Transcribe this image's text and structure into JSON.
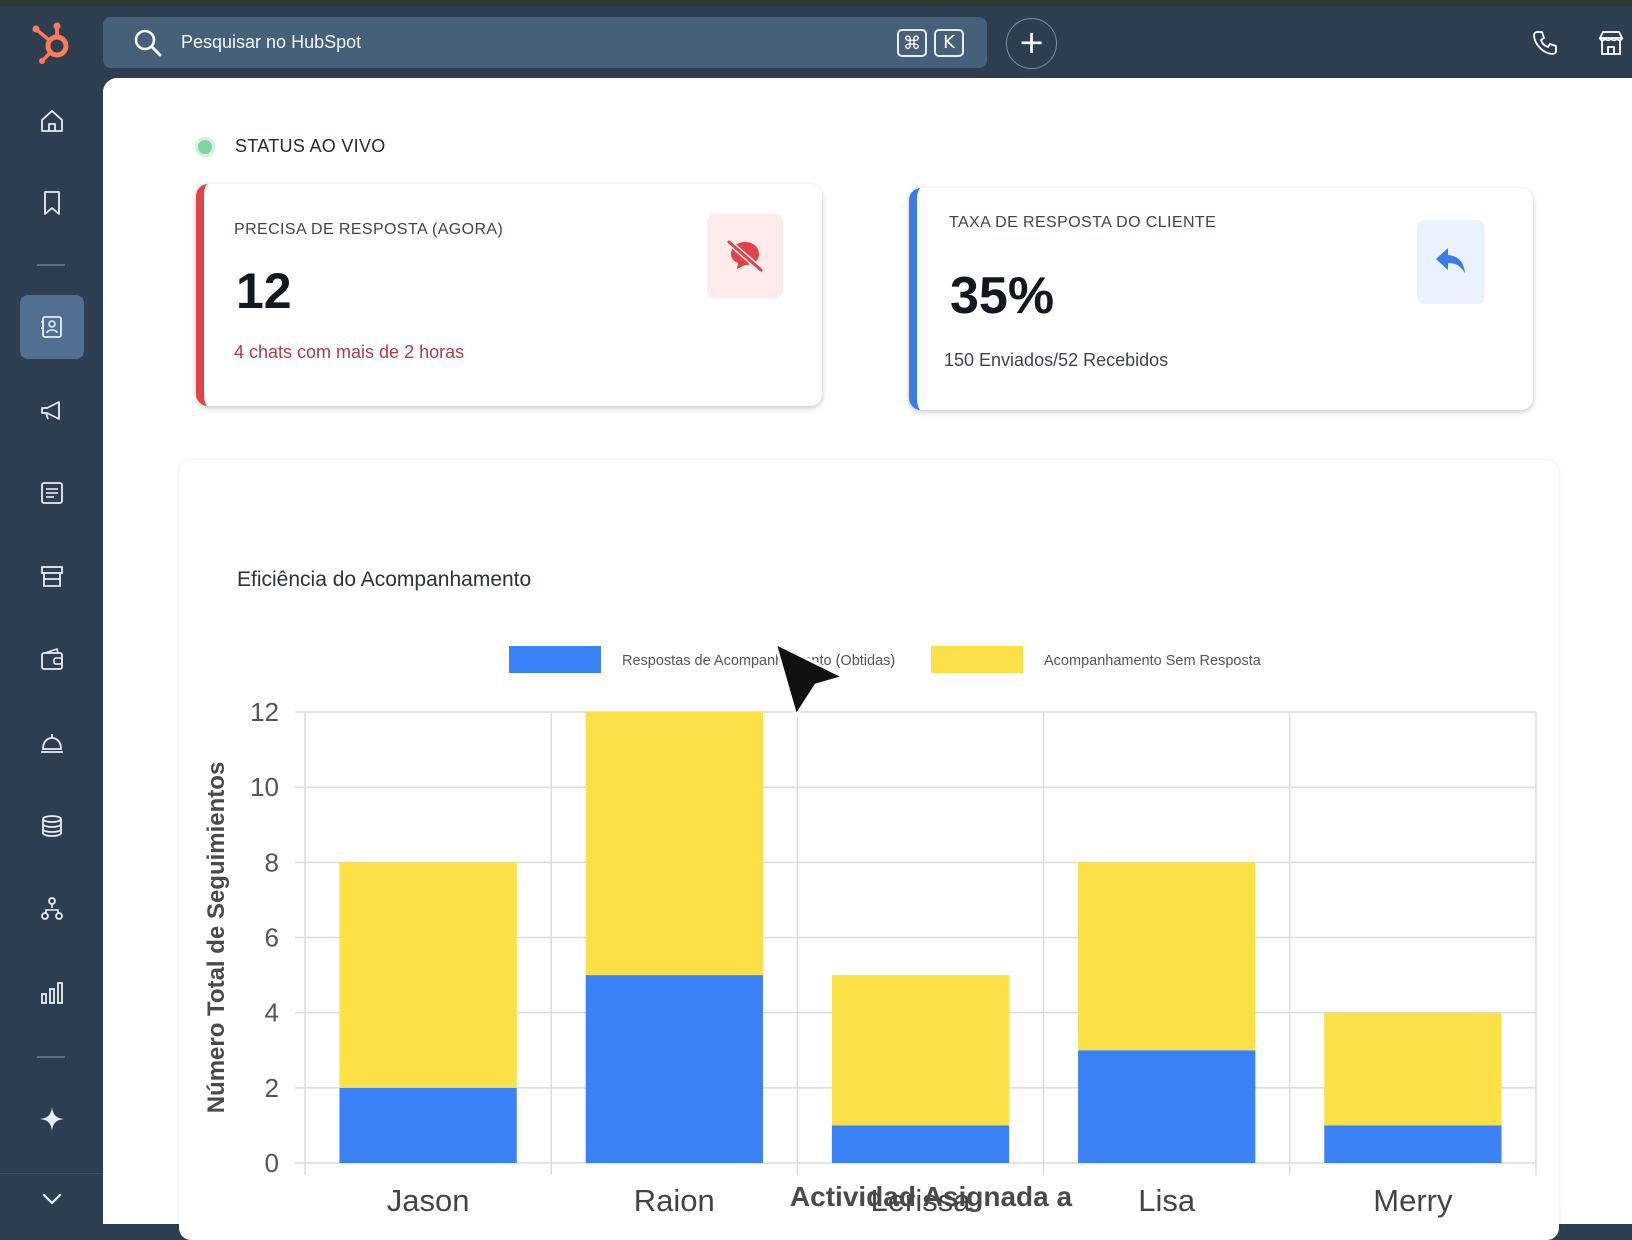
{
  "search": {
    "placeholder": "Pesquisar no HubSpot",
    "shortcut_cmd": "⌘",
    "shortcut_k": "K"
  },
  "status": {
    "label": "STATUS AO VIVO"
  },
  "cards": [
    {
      "label": "PRECISA DE RESPOSTA (AGORA)",
      "value": "12",
      "sub": "4 chats com mais de 2 horas",
      "icon": "chat-off-icon",
      "color": "#e2434b"
    },
    {
      "label": "TAXA DE RESPOSTA DO CLIENTE",
      "value": "35%",
      "sub": "150 Enviados/52 Recebidos",
      "icon": "reply-icon",
      "color": "#3b7be6"
    }
  ],
  "sidebar": {
    "items": [
      "home-icon",
      "bookmark-icon",
      "contacts-icon",
      "megaphone-icon",
      "content-icon",
      "commerce-icon",
      "wallet-icon",
      "service-bell-icon",
      "database-icon",
      "workflows-icon",
      "reports-icon",
      "sparkle-icon"
    ],
    "active": "contacts-icon"
  },
  "chart_data": {
    "type": "bar",
    "stacked": true,
    "title": "Eficiência do Acompanhamento",
    "categories": [
      "Jason",
      "Raion",
      "Lerissa",
      "Lisa",
      "Merry"
    ],
    "series": [
      {
        "name": "Respostas de Acompanhamento (Obtidas)",
        "values": [
          2,
          5,
          1,
          3,
          1
        ],
        "color": "#3b82f6"
      },
      {
        "name": "Acompanhamento Sem Resposta",
        "values": [
          6,
          7,
          4,
          5,
          3
        ],
        "color": "#fbe048"
      }
    ],
    "xlabel": "Actividad Asignada a",
    "ylabel": "Número Total de Seguimientos",
    "ylim": [
      0,
      12
    ],
    "yticks": [
      0,
      2,
      4,
      6,
      8,
      10,
      12
    ],
    "grid": true,
    "legend": "top-center"
  }
}
